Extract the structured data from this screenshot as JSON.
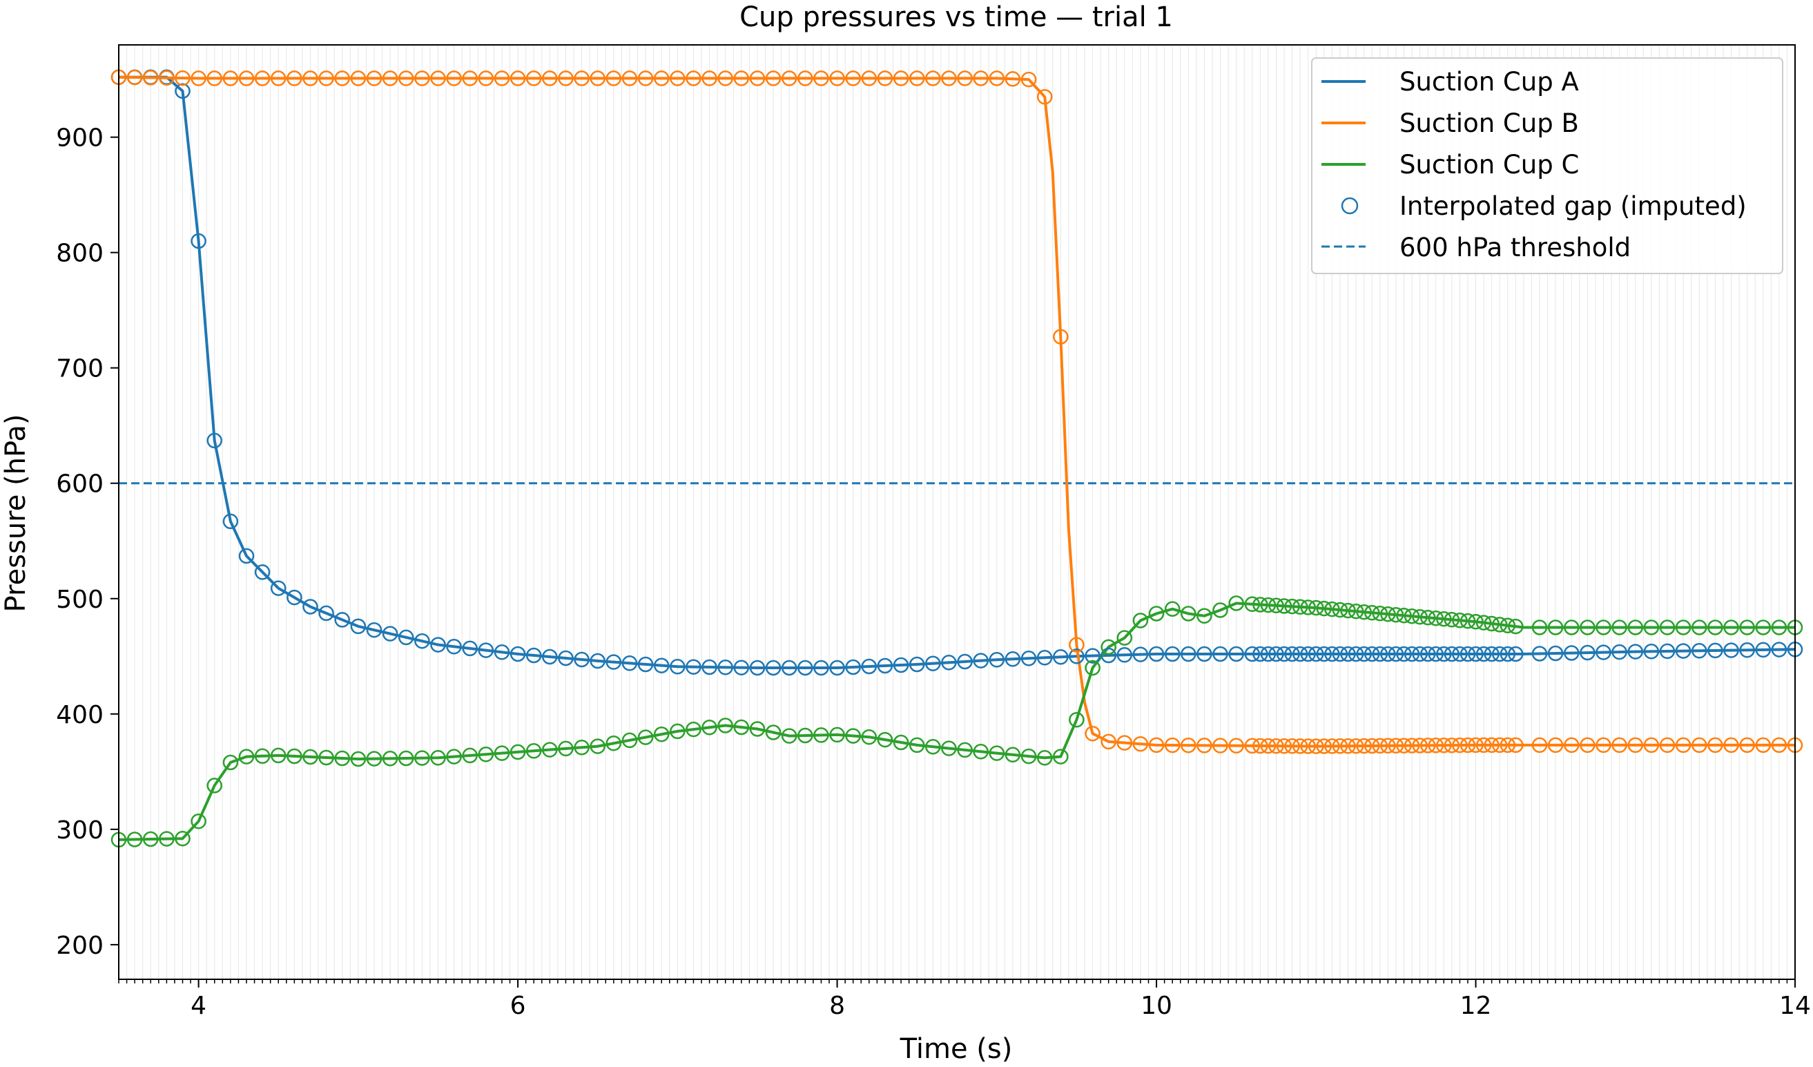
{
  "chart_data": {
    "type": "line",
    "title": "Cup pressures vs time — trial 1",
    "xlabel": "Time (s)",
    "ylabel": "Pressure (hPa)",
    "xlim": [
      3.5,
      14
    ],
    "ylim": [
      170,
      980
    ],
    "xticks": [
      4,
      6,
      8,
      10,
      12,
      14
    ],
    "yticks": [
      200,
      300,
      400,
      500,
      600,
      700,
      800,
      900
    ],
    "grid": "vertical minor lines",
    "legend_position": "top-right",
    "legend": {
      "series_a": "Suction Cup A",
      "series_b": "Suction Cup B",
      "series_c": "Suction Cup C",
      "markers": "Interpolated gap (imputed)",
      "threshold": "600 hPa threshold"
    },
    "colors": {
      "a": "#1f77b4",
      "b": "#ff7f0e",
      "c": "#2ca02c"
    },
    "threshold": 600,
    "series": [
      {
        "name": "Suction Cup A",
        "points": [
          [
            3.5,
            952
          ],
          [
            3.8,
            952
          ],
          [
            3.9,
            940
          ],
          [
            4.0,
            810
          ],
          [
            4.1,
            637
          ],
          [
            4.2,
            567
          ],
          [
            4.3,
            537
          ],
          [
            4.5,
            509
          ],
          [
            4.7,
            493
          ],
          [
            5.0,
            476
          ],
          [
            5.5,
            460
          ],
          [
            6.0,
            452
          ],
          [
            6.5,
            446
          ],
          [
            7.0,
            441
          ],
          [
            7.5,
            440
          ],
          [
            8.0,
            440
          ],
          [
            8.5,
            443
          ],
          [
            9.0,
            447
          ],
          [
            9.5,
            450
          ],
          [
            10.0,
            452
          ],
          [
            12.0,
            452
          ],
          [
            12.3,
            452
          ],
          [
            13.0,
            454
          ],
          [
            14.0,
            456
          ]
        ]
      },
      {
        "name": "Suction Cup B",
        "points": [
          [
            3.5,
            952
          ],
          [
            4.0,
            951
          ],
          [
            5.0,
            951
          ],
          [
            6.0,
            951
          ],
          [
            7.0,
            951
          ],
          [
            8.0,
            951
          ],
          [
            9.0,
            951
          ],
          [
            9.2,
            950
          ],
          [
            9.3,
            935
          ],
          [
            9.35,
            870
          ],
          [
            9.4,
            727
          ],
          [
            9.45,
            560
          ],
          [
            9.5,
            460
          ],
          [
            9.55,
            410
          ],
          [
            9.6,
            383
          ],
          [
            9.7,
            376
          ],
          [
            10.0,
            373
          ],
          [
            11.0,
            372
          ],
          [
            12.0,
            373
          ],
          [
            12.3,
            373
          ],
          [
            13.0,
            373
          ],
          [
            14.0,
            373
          ]
        ]
      },
      {
        "name": "Suction Cup C",
        "points": [
          [
            3.5,
            291
          ],
          [
            3.9,
            292
          ],
          [
            4.0,
            307
          ],
          [
            4.1,
            338
          ],
          [
            4.2,
            358
          ],
          [
            4.3,
            363
          ],
          [
            4.5,
            364
          ],
          [
            5.0,
            361
          ],
          [
            5.5,
            362
          ],
          [
            6.0,
            367
          ],
          [
            6.5,
            372
          ],
          [
            7.0,
            385
          ],
          [
            7.3,
            390
          ],
          [
            7.5,
            387
          ],
          [
            7.7,
            381
          ],
          [
            8.0,
            382
          ],
          [
            8.2,
            380
          ],
          [
            8.5,
            373
          ],
          [
            9.0,
            366
          ],
          [
            9.3,
            362
          ],
          [
            9.4,
            363
          ],
          [
            9.5,
            395
          ],
          [
            9.6,
            440
          ],
          [
            9.7,
            458
          ],
          [
            9.8,
            466
          ],
          [
            9.9,
            481
          ],
          [
            10.0,
            487
          ],
          [
            10.1,
            491
          ],
          [
            10.2,
            487
          ],
          [
            10.3,
            485
          ],
          [
            10.4,
            490
          ],
          [
            10.5,
            496
          ],
          [
            11.0,
            492
          ],
          [
            11.5,
            486
          ],
          [
            12.0,
            480
          ],
          [
            12.3,
            475
          ],
          [
            13.0,
            475
          ],
          [
            14.0,
            475
          ]
        ]
      }
    ],
    "imputed_markers_note": ""
  }
}
